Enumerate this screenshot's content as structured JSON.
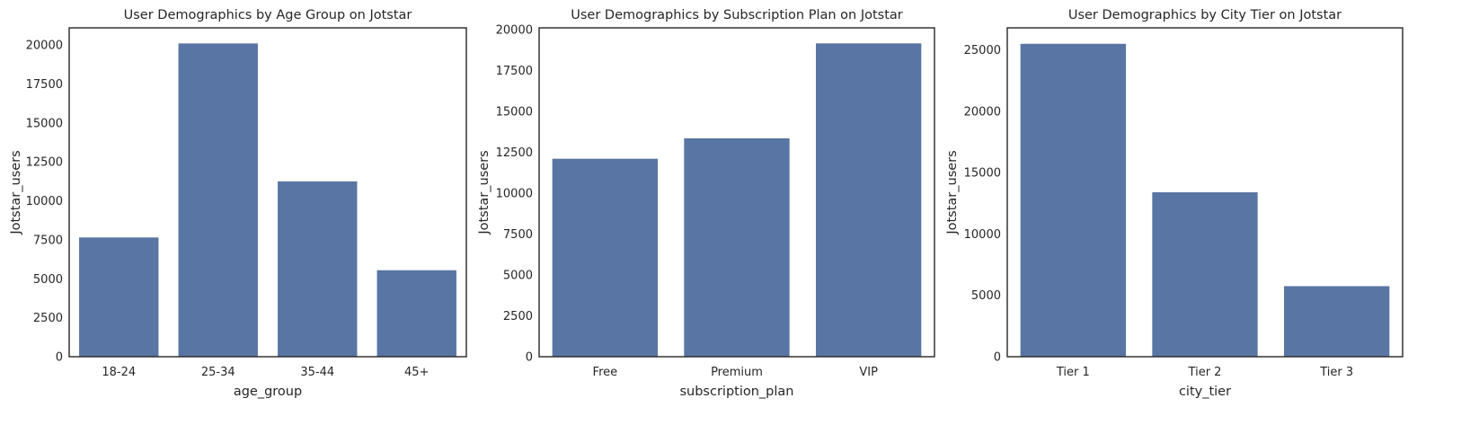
{
  "colors": {
    "bar": "#5975a4",
    "frame": "#262626",
    "background": "#ffffff"
  },
  "chart_data": [
    {
      "type": "bar",
      "title": "User Demographics by Age Group on Jotstar",
      "xlabel": "age_group",
      "ylabel": "Jotstar_users",
      "categories": [
        "18-24",
        "25-34",
        "35-44",
        "45+"
      ],
      "values": [
        7650,
        20100,
        11250,
        5550
      ],
      "ylim": [
        0,
        21100
      ],
      "yticks": [
        0,
        2500,
        5000,
        7500,
        10000,
        12500,
        15000,
        17500,
        20000
      ],
      "grid": false,
      "legend": "none"
    },
    {
      "type": "bar",
      "title": "User Demographics by Subscription Plan on Jotstar",
      "xlabel": "subscription_plan",
      "ylabel": "Jotstar_users",
      "categories": [
        "Free",
        "Premium",
        "VIP"
      ],
      "values": [
        12100,
        13350,
        19150
      ],
      "ylim": [
        0,
        20100
      ],
      "yticks": [
        0,
        2500,
        5000,
        7500,
        10000,
        12500,
        15000,
        17500,
        20000
      ],
      "grid": false,
      "legend": "none"
    },
    {
      "type": "bar",
      "title": "User Demographics by City Tier on Jotstar",
      "xlabel": "city_tier",
      "ylabel": "Jotstar_users",
      "categories": [
        "Tier 1",
        "Tier 2",
        "Tier 3"
      ],
      "values": [
        25500,
        13400,
        5750
      ],
      "ylim": [
        0,
        26800
      ],
      "yticks": [
        0,
        5000,
        10000,
        15000,
        20000,
        25000
      ],
      "grid": false,
      "legend": "none"
    }
  ]
}
